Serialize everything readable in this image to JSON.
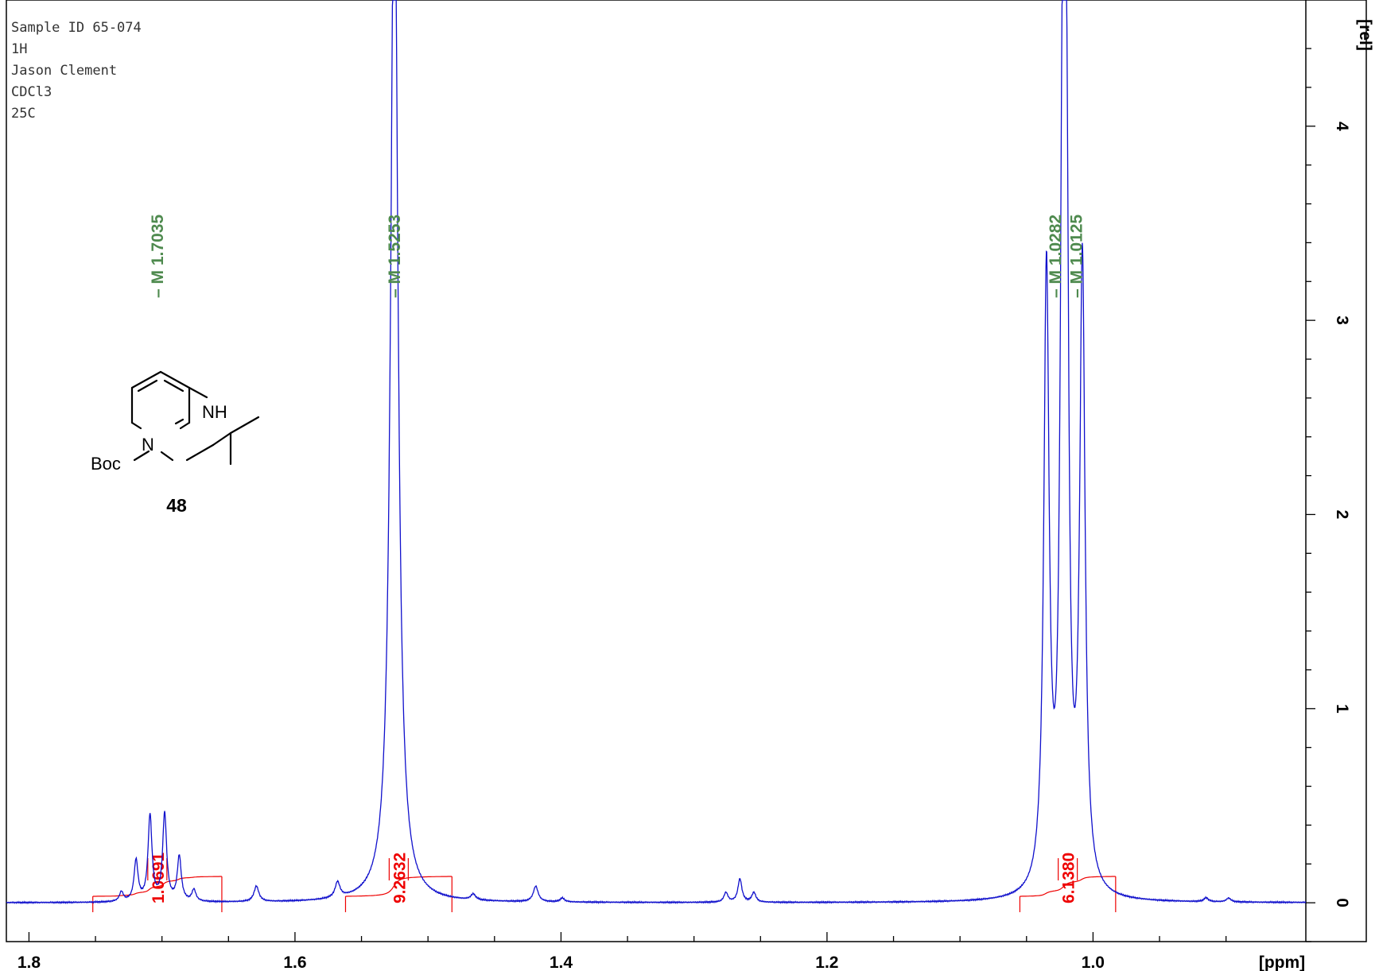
{
  "header": {
    "lines": [
      "Sample ID 65-074",
      "1H",
      "Jason Clement",
      "CDCl3",
      "25C"
    ]
  },
  "structure": {
    "label_nh": "NH",
    "label_n": "N",
    "label_boc": "Boc",
    "compound_number": "48"
  },
  "chart_data": {
    "type": "line",
    "xlabel": "[ppm]",
    "ylabel": "[rel]",
    "xlim": [
      1.817,
      0.84
    ],
    "ylim": [
      -0.2,
      4.65
    ],
    "x_ticks": [
      1.8,
      1.6,
      1.4,
      1.2,
      1.0
    ],
    "x_tick_labels": [
      "1.8",
      "1.6",
      "1.4",
      "1.2",
      "1.0"
    ],
    "y_ticks": [
      0,
      1,
      2,
      3,
      4
    ],
    "y_tick_labels": [
      "0",
      "1",
      "2",
      "3",
      "4"
    ],
    "peaks": [
      {
        "shift": 1.7035,
        "label": "M 1.7035"
      },
      {
        "shift": 1.5253,
        "label": "M 1.5253"
      },
      {
        "shift": 1.0282,
        "label": "M 1.0282"
      },
      {
        "shift": 1.0125,
        "label": "M 1.0125"
      }
    ],
    "integrals": [
      {
        "from": 1.752,
        "to": 1.655,
        "value": "1.0691"
      },
      {
        "from": 1.562,
        "to": 1.482,
        "value": "9.2632"
      },
      {
        "from": 1.055,
        "to": 0.983,
        "value": "6.1380"
      }
    ],
    "lines": [
      {
        "shift": 1.7305,
        "height": 0.05,
        "width": 0.0018
      },
      {
        "shift": 1.7195,
        "height": 0.21,
        "width": 0.0018
      },
      {
        "shift": 1.709,
        "height": 0.44,
        "width": 0.0018
      },
      {
        "shift": 1.698,
        "height": 0.45,
        "width": 0.0018
      },
      {
        "shift": 1.687,
        "height": 0.23,
        "width": 0.0018
      },
      {
        "shift": 1.676,
        "height": 0.06,
        "width": 0.0018
      },
      {
        "shift": 1.629,
        "height": 0.08,
        "width": 0.0022
      },
      {
        "shift": 1.568,
        "height": 0.08,
        "width": 0.0022
      },
      {
        "shift": 1.5253,
        "height": 5.6,
        "width": 0.0032
      },
      {
        "shift": 1.466,
        "height": 0.03,
        "width": 0.0022
      },
      {
        "shift": 1.419,
        "height": 0.08,
        "width": 0.0022
      },
      {
        "shift": 1.399,
        "height": 0.02,
        "width": 0.002
      },
      {
        "shift": 1.276,
        "height": 0.05,
        "width": 0.0018
      },
      {
        "shift": 1.2655,
        "height": 0.12,
        "width": 0.0018
      },
      {
        "shift": 1.255,
        "height": 0.05,
        "width": 0.0018
      },
      {
        "shift": 1.035,
        "height": 3.18,
        "width": 0.0024
      },
      {
        "shift": 1.023,
        "height": 3.58,
        "width": 0.002
      },
      {
        "shift": 1.02,
        "height": 3.52,
        "width": 0.002
      },
      {
        "shift": 1.008,
        "height": 3.22,
        "width": 0.0024
      },
      {
        "shift": 0.915,
        "height": 0.02,
        "width": 0.002
      },
      {
        "shift": 0.898,
        "height": 0.02,
        "width": 0.002
      }
    ]
  }
}
